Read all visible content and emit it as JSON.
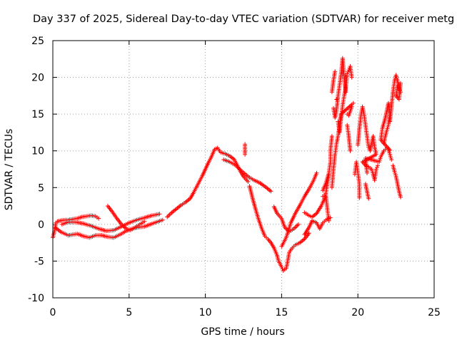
{
  "chart_data": {
    "type": "scatter",
    "title": "Day 337 of 2025, Sidereal Day-to-day VTEC variation (SDTVAR) for receiver metg",
    "xlabel": "GPS time / hours",
    "ylabel": "SDTVAR / TECUs",
    "xlim": [
      0,
      25
    ],
    "ylim": [
      -10,
      25
    ],
    "xticks": [
      0,
      5,
      10,
      15,
      20,
      25
    ],
    "yticks": [
      -10,
      -5,
      0,
      5,
      10,
      15,
      20,
      25
    ],
    "xtick_labels": [
      "0",
      "5",
      "10",
      "15",
      "20",
      "25"
    ],
    "ytick_labels": [
      "-10",
      "-5",
      "0",
      "5",
      "10",
      "15",
      "20",
      "25"
    ],
    "grid": true,
    "marker": "+",
    "series": [
      {
        "name": "SDTVAR",
        "color": "#ff0000",
        "points": [
          [
            0.0,
            -1.8
          ],
          [
            0.1,
            -1.0
          ],
          [
            0.2,
            0.2
          ],
          [
            0.3,
            0.4
          ],
          [
            0.5,
            0.5
          ],
          [
            0.8,
            0.6
          ],
          [
            1.0,
            0.6
          ],
          [
            1.3,
            0.7
          ],
          [
            1.6,
            0.8
          ],
          [
            1.9,
            1.0
          ],
          [
            2.2,
            1.1
          ],
          [
            2.5,
            1.2
          ],
          [
            2.8,
            1.1
          ],
          [
            3.0,
            0.8
          ],
          [
            0.2,
            -0.5
          ],
          [
            0.5,
            -1.0
          ],
          [
            0.8,
            -1.3
          ],
          [
            1.0,
            -1.5
          ],
          [
            1.3,
            -1.4
          ],
          [
            1.6,
            -1.3
          ],
          [
            2.0,
            -1.6
          ],
          [
            2.4,
            -1.8
          ],
          [
            2.8,
            -1.5
          ],
          [
            3.2,
            -1.5
          ],
          [
            3.6,
            -1.7
          ],
          [
            4.0,
            -1.8
          ],
          [
            4.4,
            -1.4
          ],
          [
            4.8,
            -0.9
          ],
          [
            5.2,
            -0.6
          ],
          [
            5.6,
            -0.4
          ],
          [
            6.0,
            -0.3
          ],
          [
            6.4,
            0.0
          ],
          [
            6.8,
            0.3
          ],
          [
            7.2,
            0.6
          ],
          [
            0.6,
            0.0
          ],
          [
            1.0,
            0.3
          ],
          [
            1.5,
            0.3
          ],
          [
            2.0,
            0.1
          ],
          [
            2.5,
            -0.2
          ],
          [
            3.0,
            -0.6
          ],
          [
            3.5,
            -0.9
          ],
          [
            4.0,
            -0.8
          ],
          [
            4.5,
            -0.3
          ],
          [
            5.0,
            0.2
          ],
          [
            5.5,
            0.6
          ],
          [
            6.0,
            0.9
          ],
          [
            6.5,
            1.2
          ],
          [
            7.0,
            1.4
          ],
          [
            3.6,
            2.5
          ],
          [
            3.9,
            1.7
          ],
          [
            4.2,
            0.8
          ],
          [
            4.5,
            0.0
          ],
          [
            4.8,
            -0.6
          ],
          [
            5.1,
            -0.8
          ],
          [
            5.4,
            -0.4
          ],
          [
            5.7,
            0.0
          ],
          [
            6.0,
            0.4
          ],
          [
            7.5,
            1.0
          ],
          [
            7.8,
            1.6
          ],
          [
            8.1,
            2.1
          ],
          [
            8.4,
            2.6
          ],
          [
            8.7,
            3.0
          ],
          [
            9.0,
            3.5
          ],
          [
            9.2,
            4.2
          ],
          [
            9.4,
            5.0
          ],
          [
            9.6,
            5.8
          ],
          [
            9.8,
            6.6
          ],
          [
            10.0,
            7.5
          ],
          [
            10.2,
            8.4
          ],
          [
            10.4,
            9.2
          ],
          [
            10.6,
            10.2
          ],
          [
            10.8,
            10.4
          ],
          [
            11.0,
            9.8
          ],
          [
            11.3,
            9.6
          ],
          [
            11.6,
            9.3
          ],
          [
            11.9,
            8.8
          ],
          [
            12.1,
            8.0
          ],
          [
            12.3,
            7.2
          ],
          [
            12.5,
            6.5
          ],
          [
            12.8,
            5.8
          ],
          [
            11.2,
            8.8
          ],
          [
            11.6,
            8.5
          ],
          [
            12.0,
            8.0
          ],
          [
            12.4,
            7.2
          ],
          [
            12.8,
            6.5
          ],
          [
            13.2,
            6.0
          ],
          [
            13.6,
            5.6
          ],
          [
            14.0,
            5.0
          ],
          [
            14.3,
            4.5
          ],
          [
            12.9,
            5.2
          ],
          [
            13.1,
            3.5
          ],
          [
            13.3,
            2.0
          ],
          [
            13.5,
            0.6
          ],
          [
            13.7,
            -0.6
          ],
          [
            13.9,
            -1.6
          ],
          [
            14.1,
            -2.0
          ],
          [
            14.3,
            -2.5
          ],
          [
            14.5,
            -3.2
          ],
          [
            14.7,
            -4.2
          ],
          [
            14.8,
            -5.0
          ],
          [
            15.0,
            -5.8
          ],
          [
            15.1,
            -6.3
          ],
          [
            15.3,
            -6.0
          ],
          [
            15.4,
            -5.0
          ],
          [
            15.5,
            -3.8
          ],
          [
            15.7,
            -3.2
          ],
          [
            15.9,
            -2.8
          ],
          [
            16.2,
            -2.5
          ],
          [
            16.5,
            -2.0
          ],
          [
            16.8,
            -1.2
          ],
          [
            12.6,
            10.9
          ],
          [
            12.6,
            9.5
          ],
          [
            14.5,
            2.4
          ],
          [
            14.7,
            1.5
          ],
          [
            15.0,
            0.8
          ],
          [
            15.2,
            -0.4
          ],
          [
            15.5,
            -1.0
          ],
          [
            15.8,
            -0.6
          ],
          [
            16.1,
            0.0
          ],
          [
            15.0,
            -3.0
          ],
          [
            15.3,
            -1.8
          ],
          [
            15.6,
            0.2
          ],
          [
            15.9,
            1.5
          ],
          [
            16.2,
            2.6
          ],
          [
            16.5,
            3.8
          ],
          [
            16.8,
            4.8
          ],
          [
            17.1,
            6.0
          ],
          [
            17.3,
            7.0
          ],
          [
            16.5,
            1.6
          ],
          [
            16.8,
            1.2
          ],
          [
            17.0,
            1.0
          ],
          [
            17.3,
            1.5
          ],
          [
            17.6,
            2.5
          ],
          [
            17.8,
            3.5
          ],
          [
            17.9,
            4.0
          ],
          [
            18.0,
            2.0
          ],
          [
            18.1,
            0.5
          ],
          [
            17.7,
            3.8
          ],
          [
            17.9,
            4.2
          ],
          [
            18.0,
            5.5
          ],
          [
            18.1,
            6.8
          ],
          [
            16.5,
            -1.4
          ],
          [
            16.8,
            -0.4
          ],
          [
            17.0,
            0.5
          ],
          [
            17.3,
            0.2
          ],
          [
            17.5,
            -0.6
          ],
          [
            17.7,
            0.2
          ],
          [
            17.9,
            0.6
          ],
          [
            18.2,
            0.9
          ],
          [
            17.7,
            4.6
          ],
          [
            17.9,
            5.6
          ],
          [
            18.1,
            7.0
          ],
          [
            18.2,
            8.5
          ],
          [
            18.2,
            10.0
          ],
          [
            18.3,
            12.0
          ],
          [
            18.4,
            15.8
          ],
          [
            18.5,
            14.5
          ],
          [
            18.6,
            15.5
          ],
          [
            18.7,
            17.5
          ],
          [
            18.8,
            19.0
          ],
          [
            18.9,
            20.5
          ],
          [
            19.0,
            22.6
          ],
          [
            19.1,
            20.0
          ],
          [
            19.2,
            18.0
          ],
          [
            19.3,
            15.0
          ],
          [
            19.4,
            14.8
          ],
          [
            19.6,
            16.0
          ],
          [
            18.3,
            18.0
          ],
          [
            18.4,
            19.6
          ],
          [
            18.5,
            20.8
          ],
          [
            18.6,
            17.0
          ],
          [
            18.7,
            14.0
          ],
          [
            18.8,
            12.5
          ],
          [
            18.9,
            14.5
          ],
          [
            19.0,
            16.2
          ],
          [
            19.1,
            17.5
          ],
          [
            19.2,
            18.5
          ],
          [
            19.3,
            20.5
          ],
          [
            19.4,
            21.0
          ],
          [
            19.5,
            21.5
          ],
          [
            19.6,
            20.0
          ],
          [
            19.3,
            13.5
          ],
          [
            19.4,
            12.0
          ],
          [
            19.5,
            10.0
          ],
          [
            18.3,
            5.0
          ],
          [
            18.4,
            7.5
          ],
          [
            18.5,
            9.5
          ],
          [
            18.6,
            11.0
          ],
          [
            18.7,
            12.0
          ],
          [
            18.8,
            13.5
          ],
          [
            18.9,
            15.0
          ],
          [
            19.6,
            16.3
          ],
          [
            19.7,
            16.5
          ],
          [
            19.8,
            6.8
          ],
          [
            19.9,
            8.5
          ],
          [
            20.0,
            7.0
          ],
          [
            20.1,
            5.5
          ],
          [
            20.1,
            3.6
          ],
          [
            20.0,
            10.8
          ],
          [
            20.1,
            13.0
          ],
          [
            20.2,
            14.8
          ],
          [
            20.3,
            16.0
          ],
          [
            20.4,
            15.0
          ],
          [
            20.5,
            13.5
          ],
          [
            20.6,
            12.0
          ],
          [
            20.7,
            10.5
          ],
          [
            20.8,
            10.0
          ],
          [
            20.9,
            11.0
          ],
          [
            21.0,
            12.0
          ],
          [
            21.1,
            10.5
          ],
          [
            21.2,
            9.5
          ],
          [
            20.3,
            8.5
          ],
          [
            20.5,
            8.0
          ],
          [
            20.7,
            7.8
          ],
          [
            20.9,
            7.5
          ],
          [
            21.0,
            6.8
          ],
          [
            21.1,
            6.0
          ],
          [
            21.2,
            7.5
          ],
          [
            21.3,
            8.0
          ],
          [
            20.5,
            5.5
          ],
          [
            20.6,
            4.5
          ],
          [
            20.7,
            3.5
          ],
          [
            20.6,
            7.0
          ],
          [
            20.5,
            9.0
          ],
          [
            21.4,
            8.5
          ],
          [
            21.5,
            9.2
          ],
          [
            21.7,
            10.0
          ],
          [
            21.9,
            10.4
          ],
          [
            22.1,
            10.1
          ],
          [
            21.5,
            11.5
          ],
          [
            21.6,
            13.0
          ],
          [
            21.8,
            14.5
          ],
          [
            21.9,
            15.5
          ],
          [
            22.0,
            16.5
          ],
          [
            22.1,
            15.0
          ],
          [
            22.0,
            13.5
          ],
          [
            21.9,
            12.8
          ],
          [
            21.8,
            12.0
          ],
          [
            21.7,
            11.0
          ],
          [
            22.1,
            14.0
          ],
          [
            22.2,
            16.0
          ],
          [
            22.3,
            18.0
          ],
          [
            22.4,
            19.5
          ],
          [
            22.5,
            20.3
          ],
          [
            22.6,
            19.5
          ],
          [
            22.7,
            18.5
          ],
          [
            22.8,
            18.0
          ],
          [
            22.6,
            18.8
          ],
          [
            22.5,
            17.5
          ],
          [
            22.7,
            17.0
          ],
          [
            22.8,
            19.2
          ],
          [
            22.3,
            8.0
          ],
          [
            22.4,
            7.2
          ],
          [
            22.5,
            6.5
          ],
          [
            22.6,
            5.5
          ],
          [
            22.7,
            4.5
          ],
          [
            22.8,
            3.7
          ],
          [
            22.2,
            8.8
          ],
          [
            22.1,
            9.5
          ],
          [
            22.0,
            10.2
          ]
        ]
      }
    ]
  }
}
